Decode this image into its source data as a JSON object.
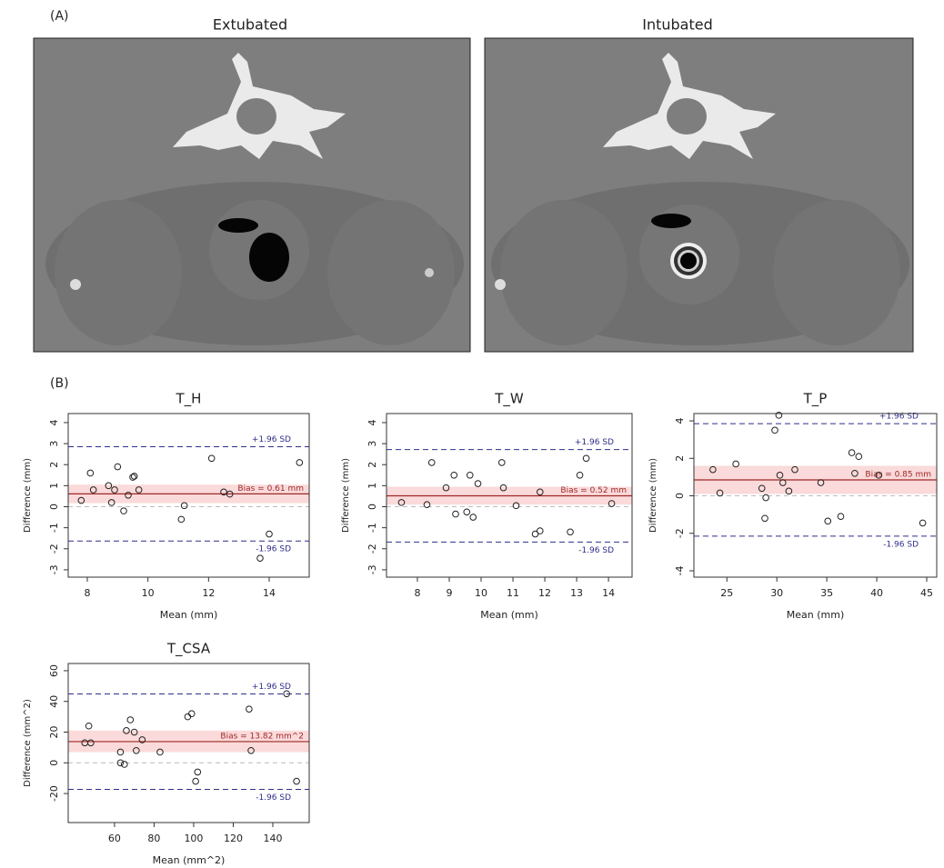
{
  "panel_a": {
    "label": "(A)",
    "images": [
      {
        "title": "Extubated"
      },
      {
        "title": "Intubated"
      }
    ]
  },
  "panel_b": {
    "label": "(B)"
  },
  "chart_data": [
    {
      "type": "scatter",
      "title": "T_H",
      "xlabel": "Mean (mm)",
      "ylabel": "Difference (mm)",
      "x": [
        7.8,
        8.1,
        8.2,
        8.7,
        8.8,
        8.9,
        9.0,
        9.2,
        9.35,
        9.5,
        9.55,
        9.7,
        11.1,
        11.2,
        12.1,
        12.5,
        12.7,
        13.7,
        14.0,
        15.0
      ],
      "values": [
        0.3,
        1.6,
        0.8,
        1.0,
        0.2,
        0.8,
        1.9,
        -0.2,
        0.55,
        1.4,
        1.45,
        0.8,
        -0.6,
        0.05,
        2.3,
        0.7,
        0.6,
        -2.45,
        -1.3,
        2.1
      ],
      "xlim": [
        7.37,
        15.32
      ],
      "ylim": [
        -3.35,
        4.43
      ],
      "xticks": [
        8,
        10,
        12,
        14
      ],
      "yticks": [
        -3,
        -2,
        -1,
        0,
        1,
        2,
        3,
        4
      ],
      "upper_loa": 2.85,
      "lower_loa": -1.63,
      "bias": 0.61,
      "bias_band": [
        0.17,
        1.05
      ],
      "reference_line": 0,
      "upper_label": "+1.96 SD",
      "lower_label": "-1.96 SD",
      "bias_label": "Bias =  0.61 mm",
      "point_color": "#222222",
      "loa_color": "#2e2e8c",
      "bias_color": "#a02828",
      "band_color": "#fadada"
    },
    {
      "type": "scatter",
      "title": "T_W",
      "xlabel": "Mean (mm)",
      "ylabel": "Difference (mm)",
      "x": [
        7.5,
        8.3,
        8.45,
        8.9,
        9.15,
        9.2,
        9.55,
        9.65,
        9.75,
        9.9,
        10.65,
        10.7,
        11.1,
        11.7,
        11.85,
        11.85,
        12.8,
        13.1,
        13.3,
        14.1
      ],
      "values": [
        0.2,
        0.1,
        2.1,
        0.9,
        1.5,
        -0.35,
        -0.25,
        1.5,
        -0.5,
        1.1,
        2.1,
        0.9,
        0.05,
        -1.3,
        -1.15,
        0.7,
        -1.2,
        1.5,
        2.3,
        0.15
      ],
      "xlim": [
        7.03,
        14.74
      ],
      "ylim": [
        -3.35,
        4.43
      ],
      "xticks": [
        8,
        9,
        10,
        11,
        12,
        13,
        14
      ],
      "yticks": [
        -3,
        -2,
        -1,
        0,
        1,
        2,
        3,
        4
      ],
      "upper_loa": 2.72,
      "lower_loa": -1.68,
      "bias": 0.52,
      "bias_band": [
        0.1,
        0.95
      ],
      "reference_line": 0,
      "upper_label": "+1.96 SD",
      "lower_label": "-1.96 SD",
      "bias_label": "Bias =  0.52 mm",
      "point_color": "#222222",
      "loa_color": "#2e2e8c",
      "bias_color": "#a02828",
      "band_color": "#fadada"
    },
    {
      "type": "scatter",
      "title": "T_P",
      "xlabel": "Mean (mm)",
      "ylabel": "Difference (mm)",
      "x": [
        23.6,
        24.3,
        25.9,
        28.5,
        28.8,
        28.9,
        29.8,
        30.2,
        30.3,
        30.6,
        31.2,
        31.8,
        34.4,
        35.1,
        36.4,
        37.5,
        37.8,
        38.2,
        40.2,
        44.6
      ],
      "values": [
        1.4,
        0.15,
        1.7,
        0.4,
        -1.2,
        -0.1,
        3.5,
        4.3,
        1.1,
        0.7,
        0.25,
        1.4,
        0.7,
        -1.35,
        -1.1,
        2.3,
        1.2,
        2.1,
        1.1,
        -1.45
      ],
      "xlim": [
        21.7,
        46.0
      ],
      "ylim": [
        -4.34,
        4.39
      ],
      "xticks": [
        25,
        30,
        35,
        40,
        45
      ],
      "yticks": [
        -4,
        -2,
        0,
        2,
        4
      ],
      "upper_loa": 3.85,
      "lower_loa": -2.15,
      "bias": 0.85,
      "bias_band": [
        0.1,
        1.6
      ],
      "reference_line": 0,
      "upper_label": "+1.96 SD",
      "lower_label": "-1.96 SD",
      "bias_label": "Bias =  0.85 mm",
      "point_color": "#222222",
      "loa_color": "#2e2e8c",
      "bias_color": "#a02828",
      "band_color": "#fadada"
    },
    {
      "type": "scatter",
      "title": "T_CSA",
      "xlabel": "Mean (mm^2)",
      "ylabel": "Difference (mm^2)",
      "x": [
        45,
        47,
        48,
        63,
        63,
        65,
        66,
        68,
        70,
        71,
        74,
        83,
        97,
        99,
        101,
        102,
        128,
        129,
        147,
        152
      ],
      "values": [
        13,
        24,
        13,
        7,
        0,
        -1,
        21,
        28,
        20,
        8,
        15,
        7,
        30,
        32,
        -12,
        -6,
        35,
        8,
        45,
        -12
      ],
      "xlim": [
        36.6,
        158.4
      ],
      "ylim": [
        -38.9,
        64.7
      ],
      "xticks": [
        60,
        80,
        100,
        120,
        140
      ],
      "yticks": [
        -20,
        0,
        20,
        40,
        60
      ],
      "upper_loa": 44.9,
      "lower_loa": -17.3,
      "bias": 13.82,
      "bias_band": [
        7,
        21
      ],
      "reference_line": 0,
      "upper_label": "+1.96 SD",
      "lower_label": "-1.96 SD",
      "bias_label": "Bias =  13.82 mm^2",
      "point_color": "#222222",
      "loa_color": "#2e2e8c",
      "bias_color": "#a02828",
      "band_color": "#fadada"
    }
  ]
}
